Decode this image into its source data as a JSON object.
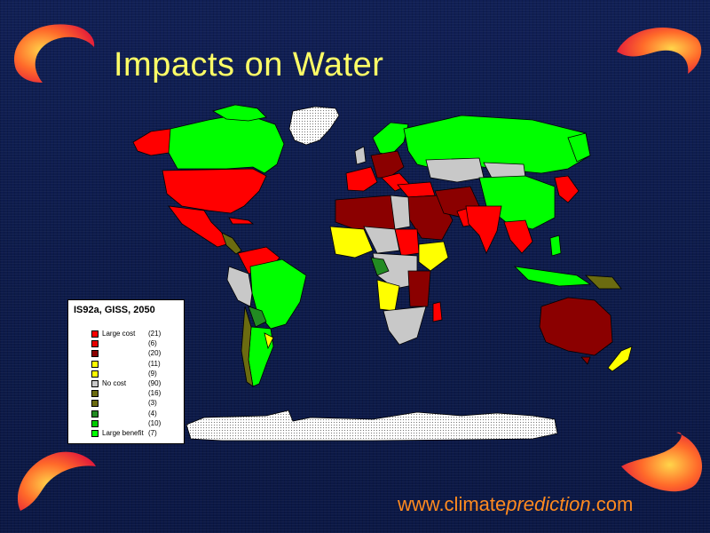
{
  "slide": {
    "title": "Impacts on Water",
    "url_prefix": "www.climate",
    "url_italic": "prediction",
    "url_suffix": ".com"
  },
  "legend": {
    "title": "IS92a, GISS, 2050",
    "items": [
      {
        "label": "Large cost",
        "count": "(21)",
        "color": "#ff0000"
      },
      {
        "label": "",
        "count": "(6)",
        "color": "#e60000"
      },
      {
        "label": "",
        "count": "(20)",
        "color": "#8b0000"
      },
      {
        "label": "",
        "count": "(11)",
        "color": "#ffff00"
      },
      {
        "label": "",
        "count": "(9)",
        "color": "#ffff00"
      },
      {
        "label": "No cost",
        "count": "(90)",
        "color": "#c8c8c8"
      },
      {
        "label": "",
        "count": "(16)",
        "color": "#6b6b10"
      },
      {
        "label": "",
        "count": "(3)",
        "color": "#6b6b10"
      },
      {
        "label": "",
        "count": "(4)",
        "color": "#228b22"
      },
      {
        "label": "",
        "count": "(10)",
        "color": "#00cc00"
      },
      {
        "label": "Large benefit",
        "count": "(7)",
        "color": "#00ff00"
      }
    ]
  },
  "colors": {
    "background": "#0d1b4b",
    "title": "#ffff66",
    "url": "#ff8a1f",
    "ice": "#f2f2f2"
  }
}
